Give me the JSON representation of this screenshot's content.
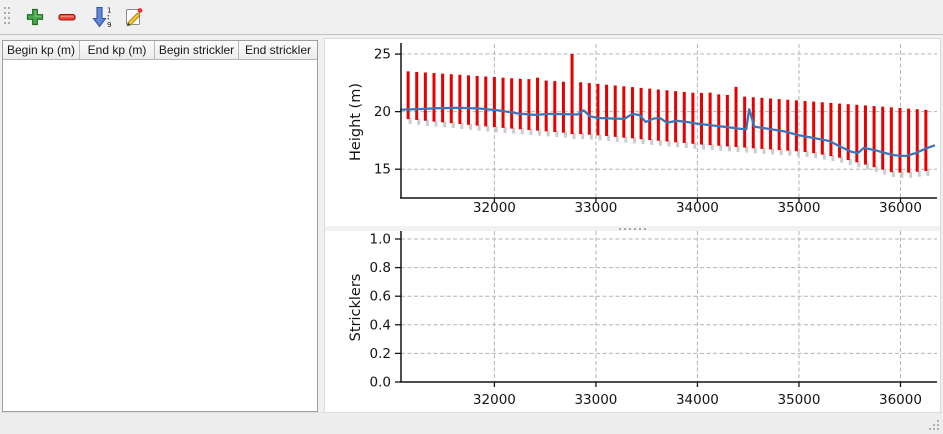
{
  "toolbar": {
    "buttons": [
      {
        "icon": "add-icon"
      },
      {
        "icon": "remove-icon"
      },
      {
        "icon": "sort-ascending-icon"
      },
      {
        "icon": "edit-icon"
      }
    ]
  },
  "table": {
    "columns": [
      "Begin kp (m)",
      "End kp (m)",
      "Begin strickler",
      "End strickler"
    ],
    "rows": []
  },
  "chart_data": [
    {
      "type": "line",
      "title": "",
      "xlabel": "",
      "ylabel": "Height (m)",
      "xlim": [
        31080,
        36340
      ],
      "ylim": [
        12.5,
        25.7
      ],
      "xticks": [
        32000,
        33000,
        34000,
        35000,
        36000
      ],
      "xtick_labels": [
        "32000",
        "33000",
        "34000",
        "35000",
        "36000"
      ],
      "yticks": [
        15,
        20,
        25
      ],
      "ytick_labels": [
        "15",
        "20",
        "25"
      ],
      "grid": true,
      "bar_color": "#e60000",
      "bar_shadow_color": "#cccccc",
      "line_color": "#3d76b8",
      "bars_kp_bottom_top": [
        [
          31150,
          19.35,
          23.5
        ],
        [
          31235,
          19.28,
          23.45
        ],
        [
          31320,
          19.21,
          23.4
        ],
        [
          31405,
          19.14,
          23.35
        ],
        [
          31490,
          19.07,
          23.3
        ],
        [
          31575,
          19.0,
          23.25
        ],
        [
          31660,
          18.93,
          23.2
        ],
        [
          31745,
          18.86,
          23.15
        ],
        [
          31830,
          18.79,
          23.1
        ],
        [
          31915,
          18.72,
          23.05
        ],
        [
          32000,
          18.65,
          23.0
        ],
        [
          32085,
          18.59,
          22.95
        ],
        [
          32170,
          18.53,
          22.9
        ],
        [
          32255,
          18.47,
          22.85
        ],
        [
          32340,
          18.41,
          22.82
        ],
        [
          32425,
          18.35,
          22.95
        ],
        [
          32510,
          18.29,
          22.7
        ],
        [
          32595,
          18.23,
          22.65
        ],
        [
          32680,
          18.17,
          22.6
        ],
        [
          32765,
          18.05,
          25.0
        ],
        [
          32850,
          18.05,
          22.55
        ],
        [
          32935,
          18.0,
          22.48
        ],
        [
          33020,
          17.94,
          22.41
        ],
        [
          33105,
          17.88,
          22.34
        ],
        [
          33190,
          17.81,
          22.27
        ],
        [
          33275,
          17.74,
          22.2
        ],
        [
          33360,
          17.68,
          22.13
        ],
        [
          33445,
          17.61,
          22.06
        ],
        [
          33530,
          17.54,
          21.99
        ],
        [
          33615,
          17.48,
          21.92
        ],
        [
          33700,
          17.41,
          21.85
        ],
        [
          33785,
          17.34,
          21.78
        ],
        [
          33870,
          17.28,
          21.71
        ],
        [
          33955,
          17.21,
          21.64
        ],
        [
          34040,
          17.14,
          21.62
        ],
        [
          34125,
          17.09,
          21.65
        ],
        [
          34210,
          17.04,
          21.5
        ],
        [
          34295,
          16.98,
          21.45
        ],
        [
          34380,
          16.93,
          22.15
        ],
        [
          34465,
          16.88,
          21.3
        ],
        [
          34550,
          16.82,
          21.25
        ],
        [
          34635,
          16.77,
          21.2
        ],
        [
          34720,
          16.72,
          21.14
        ],
        [
          34805,
          16.66,
          21.09
        ],
        [
          34890,
          16.61,
          21.03
        ],
        [
          34975,
          16.56,
          20.98
        ],
        [
          35060,
          16.5,
          20.92
        ],
        [
          35145,
          16.39,
          20.87
        ],
        [
          35230,
          16.27,
          20.81
        ],
        [
          35315,
          16.14,
          20.76
        ],
        [
          35400,
          16.0,
          20.7
        ],
        [
          35485,
          15.8,
          20.65
        ],
        [
          35570,
          15.6,
          20.59
        ],
        [
          35655,
          15.4,
          20.54
        ],
        [
          35740,
          15.18,
          20.48
        ],
        [
          35825,
          14.96,
          20.43
        ],
        [
          35910,
          14.75,
          20.37
        ],
        [
          35995,
          14.7,
          20.32
        ],
        [
          36080,
          14.7,
          20.26
        ],
        [
          36165,
          14.78,
          20.21
        ],
        [
          36250,
          14.85,
          20.15
        ]
      ],
      "line_points": [
        [
          31080,
          20.18
        ],
        [
          31250,
          20.22
        ],
        [
          31450,
          20.3
        ],
        [
          31650,
          20.33
        ],
        [
          31850,
          20.27
        ],
        [
          32050,
          20.1
        ],
        [
          32250,
          19.82
        ],
        [
          32400,
          19.72
        ],
        [
          32550,
          19.8
        ],
        [
          32700,
          19.78
        ],
        [
          32820,
          19.75
        ],
        [
          32880,
          20.12
        ],
        [
          32940,
          19.6
        ],
        [
          33020,
          19.45
        ],
        [
          33150,
          19.4
        ],
        [
          33280,
          19.37
        ],
        [
          33360,
          19.8
        ],
        [
          33430,
          19.7
        ],
        [
          33490,
          19.1
        ],
        [
          33570,
          19.4
        ],
        [
          33630,
          19.45
        ],
        [
          33700,
          19.05
        ],
        [
          33800,
          19.2
        ],
        [
          33900,
          19.1
        ],
        [
          34000,
          18.95
        ],
        [
          34150,
          18.8
        ],
        [
          34300,
          18.65
        ],
        [
          34430,
          18.5
        ],
        [
          34480,
          18.45
        ],
        [
          34510,
          20.2
        ],
        [
          34560,
          18.7
        ],
        [
          34700,
          18.5
        ],
        [
          34850,
          18.3
        ],
        [
          35000,
          17.95
        ],
        [
          35150,
          17.7
        ],
        [
          35300,
          17.45
        ],
        [
          35420,
          16.9
        ],
        [
          35520,
          16.5
        ],
        [
          35580,
          16.4
        ],
        [
          35640,
          16.85
        ],
        [
          35750,
          16.65
        ],
        [
          35850,
          16.4
        ],
        [
          35950,
          16.2
        ],
        [
          36050,
          16.15
        ],
        [
          36150,
          16.4
        ],
        [
          36250,
          16.8
        ],
        [
          36330,
          17.05
        ]
      ]
    },
    {
      "type": "line",
      "title": "",
      "xlabel": "",
      "ylabel": "Stricklers",
      "xlim": [
        31080,
        36340
      ],
      "ylim": [
        0.0,
        1.042
      ],
      "xticks": [
        32000,
        33000,
        34000,
        35000,
        36000
      ],
      "xtick_labels": [
        "32000",
        "33000",
        "34000",
        "35000",
        "36000"
      ],
      "yticks": [
        0.0,
        0.2,
        0.4,
        0.6,
        0.8,
        1.0
      ],
      "ytick_labels": [
        "0.0",
        "0.2",
        "0.4",
        "0.6",
        "0.8",
        "1.0"
      ],
      "grid": true,
      "bars_kp_bottom_top": [],
      "line_points": []
    }
  ]
}
